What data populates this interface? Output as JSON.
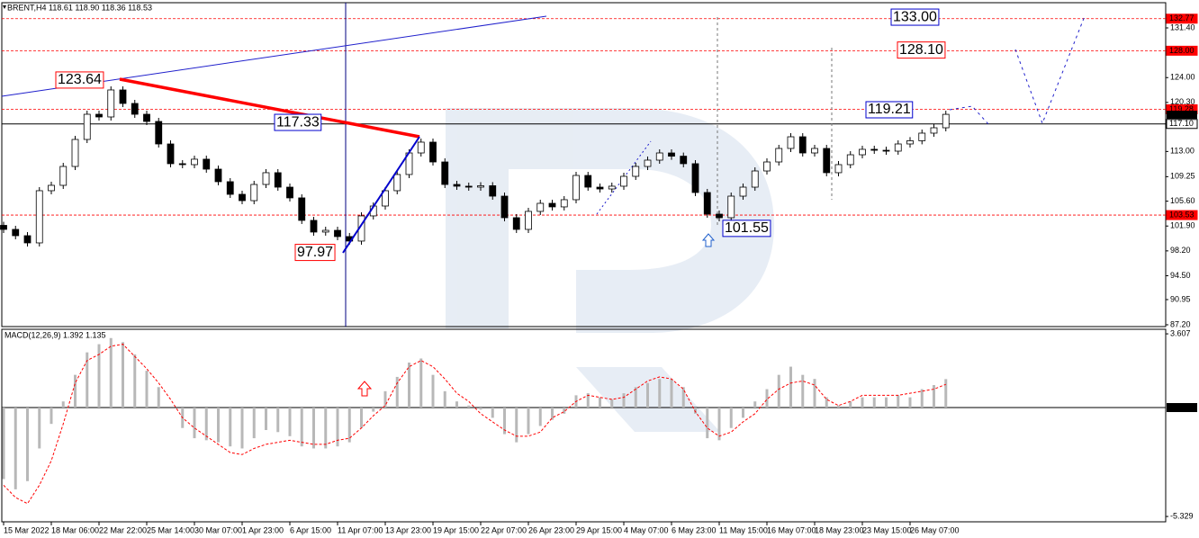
{
  "header": {
    "title": "BRENT,H4 118.61 118.90 118.36 118.53"
  },
  "chart_data": [
    {
      "type": "candlestick",
      "x_labels": [
        "15 Mar 2022",
        "18 Mar 06:00",
        "22 Mar 22:00",
        "25 Mar 14:00",
        "30 Mar 07:00",
        "1 Apr 23:00",
        "6 Apr 15:00",
        "11 Apr 07:00",
        "13 Apr 23:00",
        "19 Apr 15:00",
        "22 Apr 07:00",
        "26 Apr 23:00",
        "29 Apr 15:00",
        "4 May 07:00",
        "6 May 23:00",
        "11 May 15:00",
        "16 May 07:00",
        "18 May 23:00",
        "23 May 15:00",
        "26 May 07:00"
      ],
      "open": [
        102.0,
        101.4,
        100.46,
        99.39,
        107.16,
        107.96,
        110.77,
        114.79,
        118.54,
        118.14,
        122.16,
        120.15,
        118.54,
        117.47,
        114.12,
        111.18,
        111.04,
        111.85,
        110.37,
        108.5,
        106.62,
        105.68,
        108.09,
        109.84,
        107.69,
        106.09,
        102.74,
        101.0,
        101.26,
        100.33,
        99.66,
        103.41,
        104.88,
        107.16,
        109.57,
        112.78,
        114.39,
        111.44,
        108.09,
        107.83,
        107.69,
        107.9,
        106.35,
        103.14,
        101.4,
        104.08,
        105.28,
        104.75,
        105.82,
        109.43,
        107.69,
        107.42,
        107.83,
        109.3,
        110.77,
        111.71,
        112.78,
        112.3,
        111.18,
        106.89,
        103.67,
        103.14,
        106.35,
        107.69,
        110.1,
        111.44,
        113.45,
        115.19,
        112.78,
        113.45,
        109.84,
        111.04,
        112.51,
        113.32,
        113.18,
        113.05,
        114.12,
        114.6,
        115.73,
        116.53
      ],
      "close": [
        101.4,
        100.46,
        99.39,
        107.16,
        107.96,
        110.77,
        114.79,
        118.54,
        118.14,
        122.16,
        120.15,
        118.54,
        117.47,
        114.12,
        111.18,
        111.04,
        111.85,
        110.37,
        108.5,
        106.62,
        105.68,
        108.09,
        109.84,
        107.69,
        106.09,
        102.74,
        101.0,
        101.26,
        100.33,
        99.66,
        103.41,
        104.88,
        107.16,
        109.57,
        112.78,
        114.39,
        111.44,
        108.09,
        107.83,
        107.69,
        107.9,
        106.35,
        103.14,
        101.4,
        104.08,
        105.28,
        104.75,
        105.82,
        109.43,
        107.69,
        107.42,
        107.83,
        109.3,
        110.77,
        111.71,
        112.78,
        112.3,
        111.18,
        106.89,
        103.67,
        103.14,
        106.35,
        107.69,
        110.1,
        111.44,
        113.45,
        115.19,
        112.78,
        113.45,
        109.84,
        111.04,
        112.51,
        113.32,
        113.18,
        113.05,
        114.12,
        114.6,
        115.73,
        116.53,
        118.53
      ],
      "ylim": [
        86.93,
        135.15
      ],
      "yticks": [
        {
          "value": 131.4,
          "label": "131.40"
        },
        {
          "value": 124,
          "label": "124.00"
        },
        {
          "value": 120.3,
          "label": "120.30"
        },
        {
          "value": 113,
          "label": "113.00"
        },
        109.25,
        {
          "value": 105.6,
          "label": "105.60"
        },
        {
          "value": 101.9,
          "label": "101.90"
        },
        {
          "value": 98.2,
          "label": "98.20"
        },
        {
          "value": 94.5,
          "label": "94.50"
        },
        90.95,
        {
          "value": 87.2,
          "label": "87.20"
        }
      ],
      "levels": [
        {
          "value": 132.77,
          "color": "#ff0000"
        },
        {
          "value": 128,
          "label": "128.00",
          "color": "#ff0000"
        },
        {
          "value": 119.28,
          "color": "#ff0000"
        },
        {
          "value": 117.1,
          "label": "117.10",
          "color": "#000000"
        },
        {
          "value": 103.53,
          "color": "#ff0000"
        }
      ],
      "price_tag": 118.53,
      "annotations": [
        {
          "value": 123.64,
          "color": "#ff0000"
        },
        {
          "value": 117.33,
          "color": "#0000cc"
        },
        {
          "value": 97.97,
          "color": "#ff0000"
        },
        {
          "value": 101.55,
          "color": "#0000cc"
        },
        {
          "value": 119.21,
          "color": "#0000cc"
        },
        {
          "value": 128.1,
          "label": "128.10",
          "color": "#ff0000"
        },
        {
          "value": 133,
          "label": "133.00",
          "color": "#0000cc"
        }
      ]
    },
    {
      "type": "macd",
      "title": "MACD(12,26,9) 1.392 1.135",
      "series": [
        {
          "color": "#b8b8b8",
          "values": [
            -3.5,
            -4.0,
            -3.6,
            -2.0,
            -0.8,
            0.3,
            1.6,
            2.7,
            3.1,
            3.4,
            3.2,
            2.6,
            1.8,
            1.0,
            0.0,
            -1.0,
            -1.5,
            -1.6,
            -1.7,
            -1.9,
            -2.0,
            -1.5,
            -1.1,
            -1.2,
            -1.4,
            -1.9,
            -2.0,
            -2.0,
            -1.9,
            -1.7,
            -1.0,
            -0.2,
            0.8,
            1.5,
            2.2,
            2.4,
            1.6,
            0.8,
            0.3,
            0.1,
            -0.1,
            -0.5,
            -1.3,
            -1.7,
            -1.3,
            -0.9,
            -0.6,
            -0.3,
            0.6,
            0.7,
            0.5,
            0.4,
            0.7,
            1.0,
            1.2,
            1.4,
            1.4,
            1.0,
            -0.3,
            -1.5,
            -1.6,
            -1.0,
            -0.5,
            0.3,
            0.9,
            1.6,
            2.0,
            1.6,
            1.4,
            0.5,
            0.1,
            0.3,
            0.5,
            0.5,
            0.5,
            0.6,
            0.5,
            0.9,
            1.1,
            1.392
          ]
        },
        {
          "color": "#ff0000",
          "values": [
            -3.8,
            -4.4,
            -4.7,
            -3.8,
            -2.6,
            -0.8,
            1.2,
            2.3,
            2.6,
            3.0,
            3.1,
            2.5,
            1.9,
            1.2,
            0.4,
            -0.5,
            -1.0,
            -1.4,
            -1.8,
            -2.2,
            -2.3,
            -2.0,
            -1.8,
            -1.7,
            -1.6,
            -1.7,
            -1.8,
            -1.8,
            -1.6,
            -1.5,
            -1.0,
            -0.4,
            0.1,
            1.2,
            2.0,
            2.3,
            2.0,
            1.4,
            0.7,
            0.3,
            -0.3,
            -0.7,
            -1.1,
            -1.4,
            -1.4,
            -1.2,
            -0.5,
            -0.2,
            0.3,
            0.6,
            0.5,
            0.4,
            0.5,
            0.9,
            1.3,
            1.5,
            1.4,
            0.9,
            -0.2,
            -1.0,
            -1.4,
            -1.2,
            -0.7,
            -0.3,
            0.4,
            0.9,
            1.2,
            1.3,
            1.1,
            0.4,
            0.1,
            0.3,
            0.6,
            0.6,
            0.6,
            0.6,
            0.7,
            0.8,
            0.9,
            1.135
          ]
        }
      ],
      "ylim": [
        -5.59,
        3.83
      ],
      "yticks": [
        3.607,
        {
          "value": 0,
          "label": "0.000"
        },
        -5.329
      ]
    }
  ]
}
